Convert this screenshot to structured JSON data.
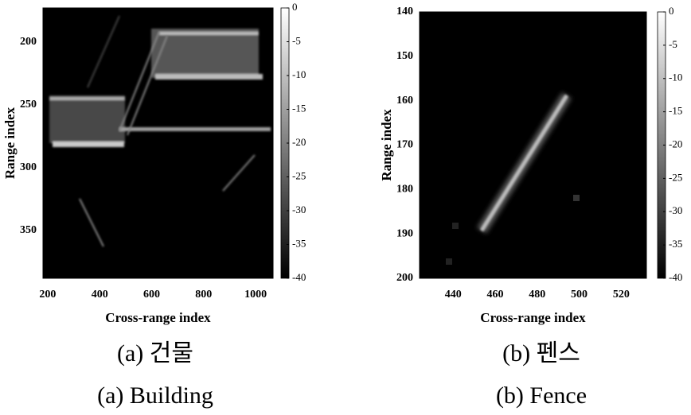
{
  "chart_data": [
    {
      "type": "image",
      "xlabel": "Cross-range index",
      "ylabel": "Range index",
      "xlim": [
        182,
        1067
      ],
      "xticks": [
        200,
        400,
        600,
        800,
        1000
      ],
      "ylim": [
        173,
        388
      ],
      "yticks": [
        200,
        250,
        300,
        350
      ],
      "yreverse": true,
      "colorbar": {
        "lim": [
          -40,
          0
        ],
        "ticks": [
          0,
          -5,
          -10,
          -15,
          -20,
          -25,
          -30,
          -35,
          -40
        ]
      },
      "caption": [
        "(a) 건물",
        "(a) Building"
      ]
    },
    {
      "type": "image",
      "xlabel": "Cross-range index",
      "ylabel": "Range index",
      "xlim": [
        424,
        532
      ],
      "xticks": [
        440,
        460,
        480,
        500,
        520
      ],
      "ylim": [
        140,
        200
      ],
      "yticks": [
        140,
        150,
        160,
        170,
        180,
        190,
        200
      ],
      "yreverse": true,
      "colorbar": {
        "lim": [
          -40,
          0
        ],
        "ticks": [
          0,
          -5,
          -10,
          -15,
          -20,
          -25,
          -30,
          -35,
          -40
        ]
      },
      "caption": [
        "(b) 펜스",
        "(b) Fence"
      ]
    }
  ]
}
